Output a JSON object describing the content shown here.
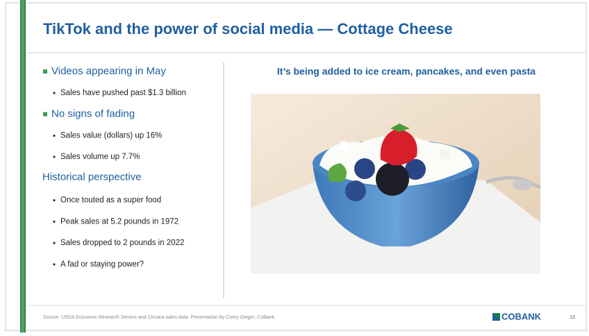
{
  "slide": {
    "title": "TikTok and the power of social media — Cottage Cheese",
    "bullet_points": [
      {
        "text": "Videos appearing in May",
        "sub": [
          "Sales have pushed past $1.3 billion"
        ]
      },
      {
        "text": "No signs of fading",
        "sub": [
          "Sales value (dollars) up 16%",
          "Sales volume up 7.7%"
        ]
      }
    ],
    "historical": {
      "heading": "Historical perspective",
      "items": [
        "Once touted as a super food",
        "Peak sales at 5.2 pounds in 1972",
        "Sales dropped to 2 pounds in 2022",
        "A fad or staying power?"
      ]
    },
    "image_heading": "It’s being added to ice cream, pancakes, and even pasta",
    "source": "Source: USDA Economic Research Service and Circana sales data. Presentation by Corey Geiger, CoBank.",
    "logo": "COBANK",
    "page_number": "13"
  }
}
